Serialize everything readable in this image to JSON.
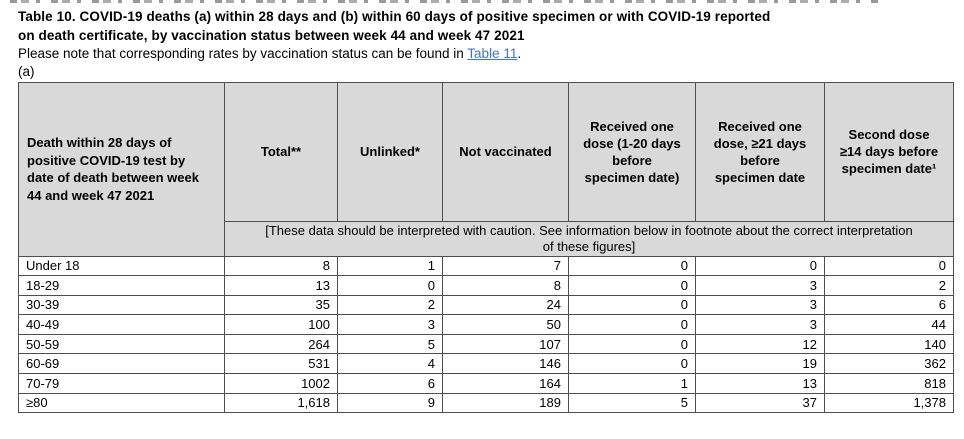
{
  "doc": {
    "title": "Table 10. COVID-19 deaths (a) within 28 days and (b) within 60 days of positive specimen or with COVID-19 reported\non death certificate, by vaccination status between week 44 and week 47 2021",
    "note_prefix": "Please note that corresponding rates by vaccination status can be found in ",
    "note_link": "Table 11",
    "note_suffix": ".",
    "section_label": "(a)"
  },
  "colors": {
    "header_bg": "#d9d9d9",
    "border": "#4f4f4f",
    "link_blue": "#4472c4",
    "text": "#000000"
  },
  "table": {
    "row_header": "Death within 28 days of\npositive COVID-19 test by\ndate of death between week\n44 and week 47 2021",
    "columns": [
      "Total**",
      "Unlinked*",
      "Not vaccinated",
      "Received one\ndose (1-20 days\nbefore\nspecimen date)",
      "Received one\ndose, ≥21 days\nbefore\nspecimen date",
      "Second dose\n≥14 days before\nspecimen date¹"
    ],
    "caution_note": "[These data should be interpreted with caution. See information below in footnote about the correct interpretation\nof these figures]",
    "rows": [
      {
        "label": "Under 18",
        "values": [
          "8",
          "1",
          "7",
          "0",
          "0",
          "0"
        ]
      },
      {
        "label": "18-29",
        "values": [
          "13",
          "0",
          "8",
          "0",
          "3",
          "2"
        ]
      },
      {
        "label": "30-39",
        "values": [
          "35",
          "2",
          "24",
          "0",
          "3",
          "6"
        ]
      },
      {
        "label": "40-49",
        "values": [
          "100",
          "3",
          "50",
          "0",
          "3",
          "44"
        ]
      },
      {
        "label": "50-59",
        "values": [
          "264",
          "5",
          "107",
          "0",
          "12",
          "140"
        ]
      },
      {
        "label": "60-69",
        "values": [
          "531",
          "4",
          "146",
          "0",
          "19",
          "362"
        ]
      },
      {
        "label": "70-79",
        "values": [
          "1002",
          "6",
          "164",
          "1",
          "13",
          "818"
        ]
      },
      {
        "label": "≥80",
        "values": [
          "1,618",
          "9",
          "189",
          "5",
          "37",
          "1,378"
        ]
      }
    ]
  }
}
